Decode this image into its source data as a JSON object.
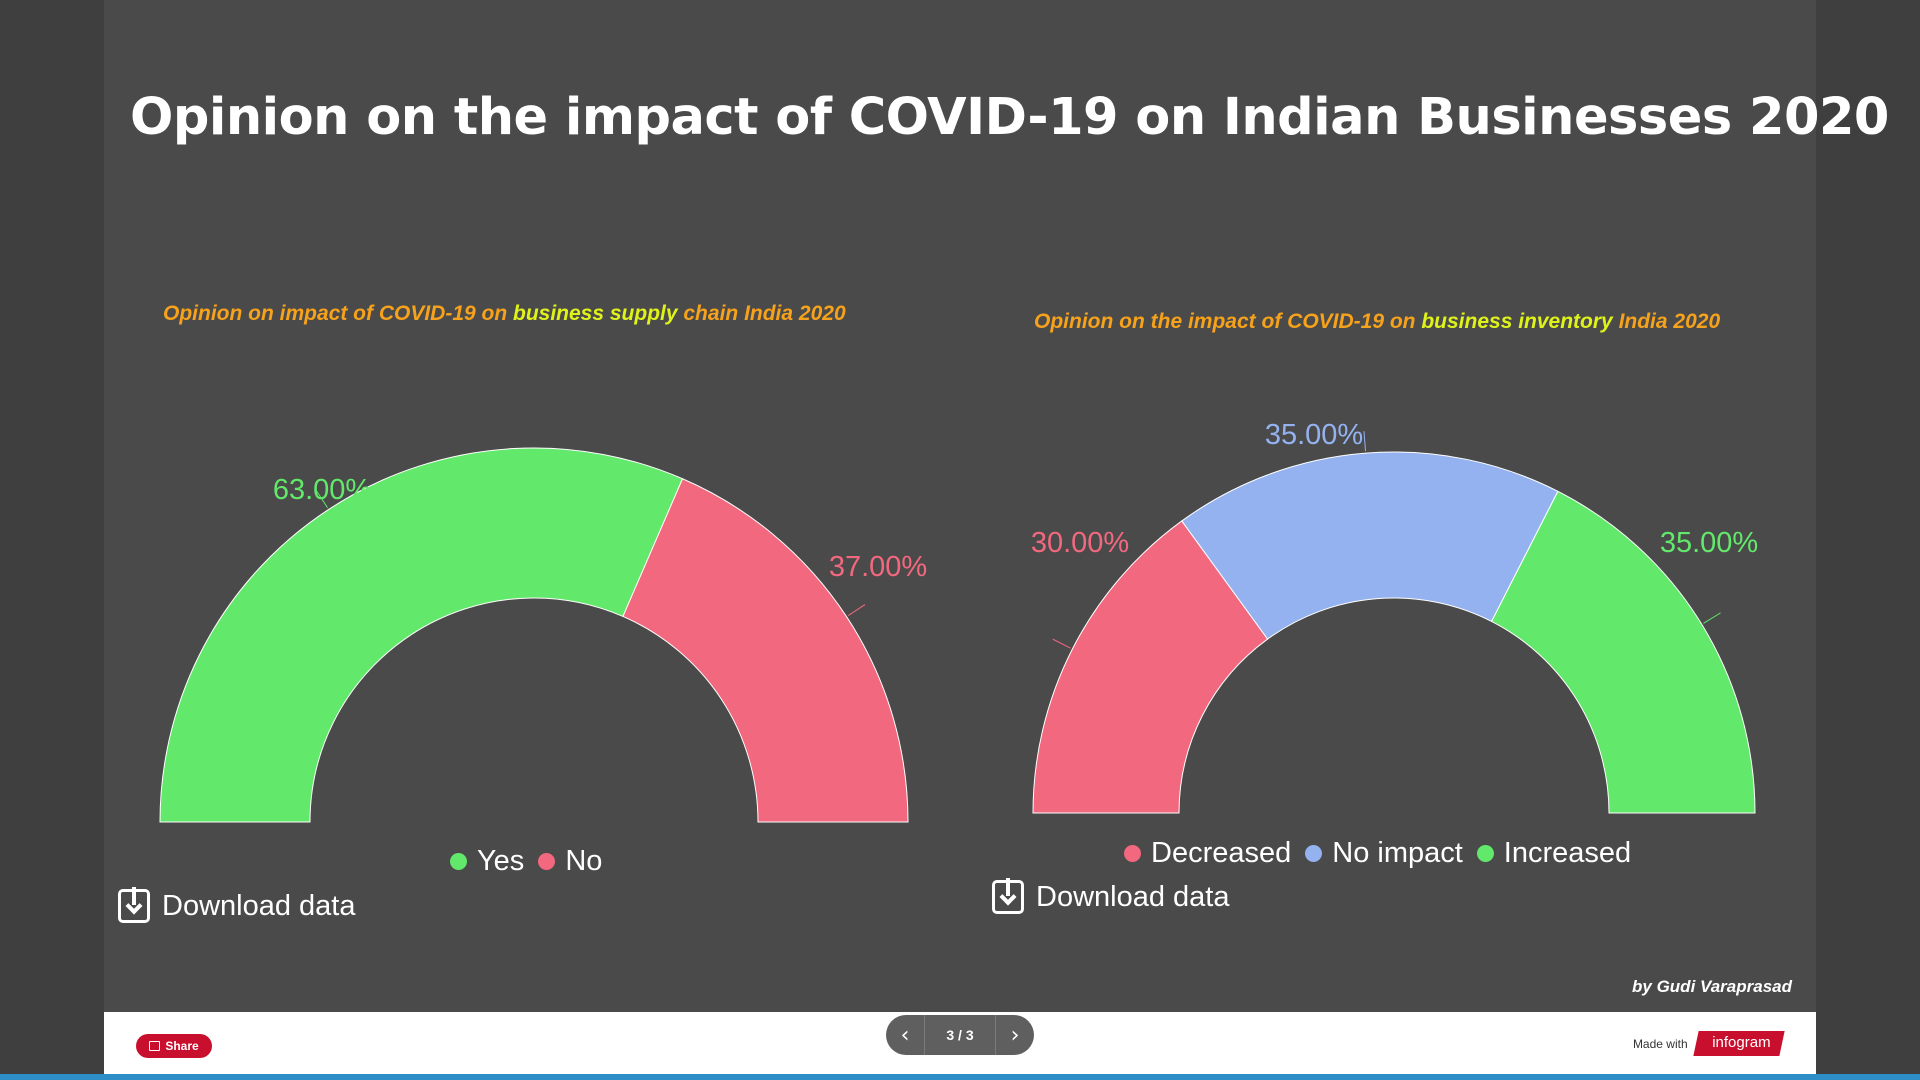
{
  "title": "Opinion on the impact of COVID-19 on Indian Businesses 2020",
  "chart_data": [
    {
      "type": "pie",
      "subtitle_parts": [
        "Opinion on impact of COVID-19 on ",
        "business supply",
        " chain India 2020"
      ],
      "categories": [
        "Yes",
        "No"
      ],
      "values": [
        63,
        37
      ],
      "value_labels": [
        "63.00%",
        "37.00%"
      ],
      "colors": [
        "#62e86a",
        "#f2687e"
      ],
      "legend": "bottom"
    },
    {
      "type": "pie",
      "subtitle_parts": [
        "Opinion on the impact of COVID-19 on ",
        "business inventory",
        " India 2020"
      ],
      "categories": [
        "Decreased",
        "No impact",
        "Increased"
      ],
      "values": [
        30,
        35,
        35
      ],
      "value_labels": [
        "30.00%",
        "35.00%",
        "35.00%"
      ],
      "colors": [
        "#f2687e",
        "#94b2f0",
        "#62e86a"
      ],
      "legend": "bottom"
    }
  ],
  "download_label": "Download data",
  "byline": "by  Gudi Varaprasad",
  "footer": {
    "share_label": "Share",
    "pager_text": "3 / 3",
    "prev_icon": "chevron-left-icon",
    "next_icon": "chevron-right-icon",
    "made_with": "Made with",
    "brand": "infogram"
  }
}
